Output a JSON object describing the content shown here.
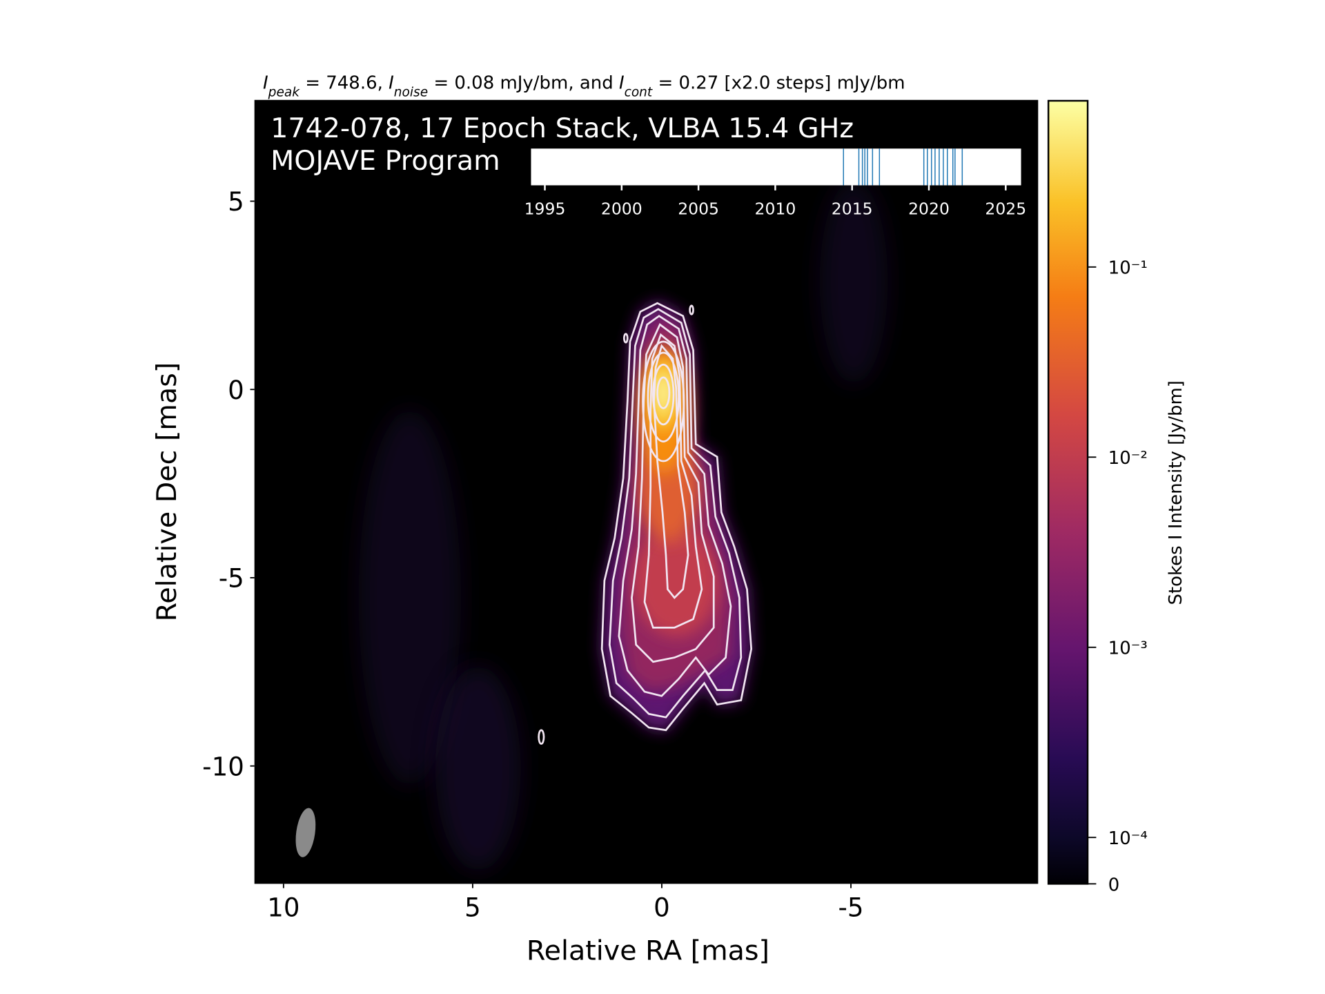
{
  "chart_data": {
    "type": "image",
    "title_parts": [
      "I",
      "peak",
      " = 748.6, ",
      "I",
      "noise",
      " = 0.08 mJy/bm, and ",
      "I",
      "cont",
      " = 0.27 [x2.0 steps] mJy/bm"
    ],
    "annotations": [
      "1742-078, 17 Epoch Stack, VLBA 15.4 GHz",
      "MOJAVE Program"
    ],
    "xlabel": "Relative RA [mas]",
    "ylabel": "Relative Dec [mas]",
    "xlim": [
      10.77,
      -9.95
    ],
    "ylim": [
      -13.13,
      7.69
    ],
    "xticks": [
      10,
      5,
      0,
      -5
    ],
    "yticks": [
      5,
      0,
      -5,
      -10
    ],
    "colormap": "inferno",
    "colorbar": {
      "label": "Stokes I Intensity [Jy/bm]",
      "scale": "symlog",
      "lim": [
        0,
        0.7486
      ],
      "ticks": [
        0,
        {
          "value": 0.0001,
          "label": "10⁻⁴"
        },
        {
          "value": 0.001,
          "label": "10⁻³"
        },
        {
          "value": 0.01,
          "label": "10⁻²"
        },
        {
          "value": 0.1,
          "label": "10⁻¹"
        }
      ]
    },
    "epochs": {
      "xlim": [
        1994.1,
        2026
      ],
      "xticks": [
        1995,
        2000,
        2005,
        2010,
        2015,
        2020,
        2025
      ],
      "color": "#1f77b4",
      "values": [
        2014.44,
        2015.44,
        2015.67,
        2015.83,
        2016.0,
        2016.33,
        2016.78,
        2019.67,
        2019.9,
        2020.17,
        2020.4,
        2020.67,
        2020.94,
        2021.2,
        2021.56,
        2021.7,
        2022.17
      ]
    }
  }
}
